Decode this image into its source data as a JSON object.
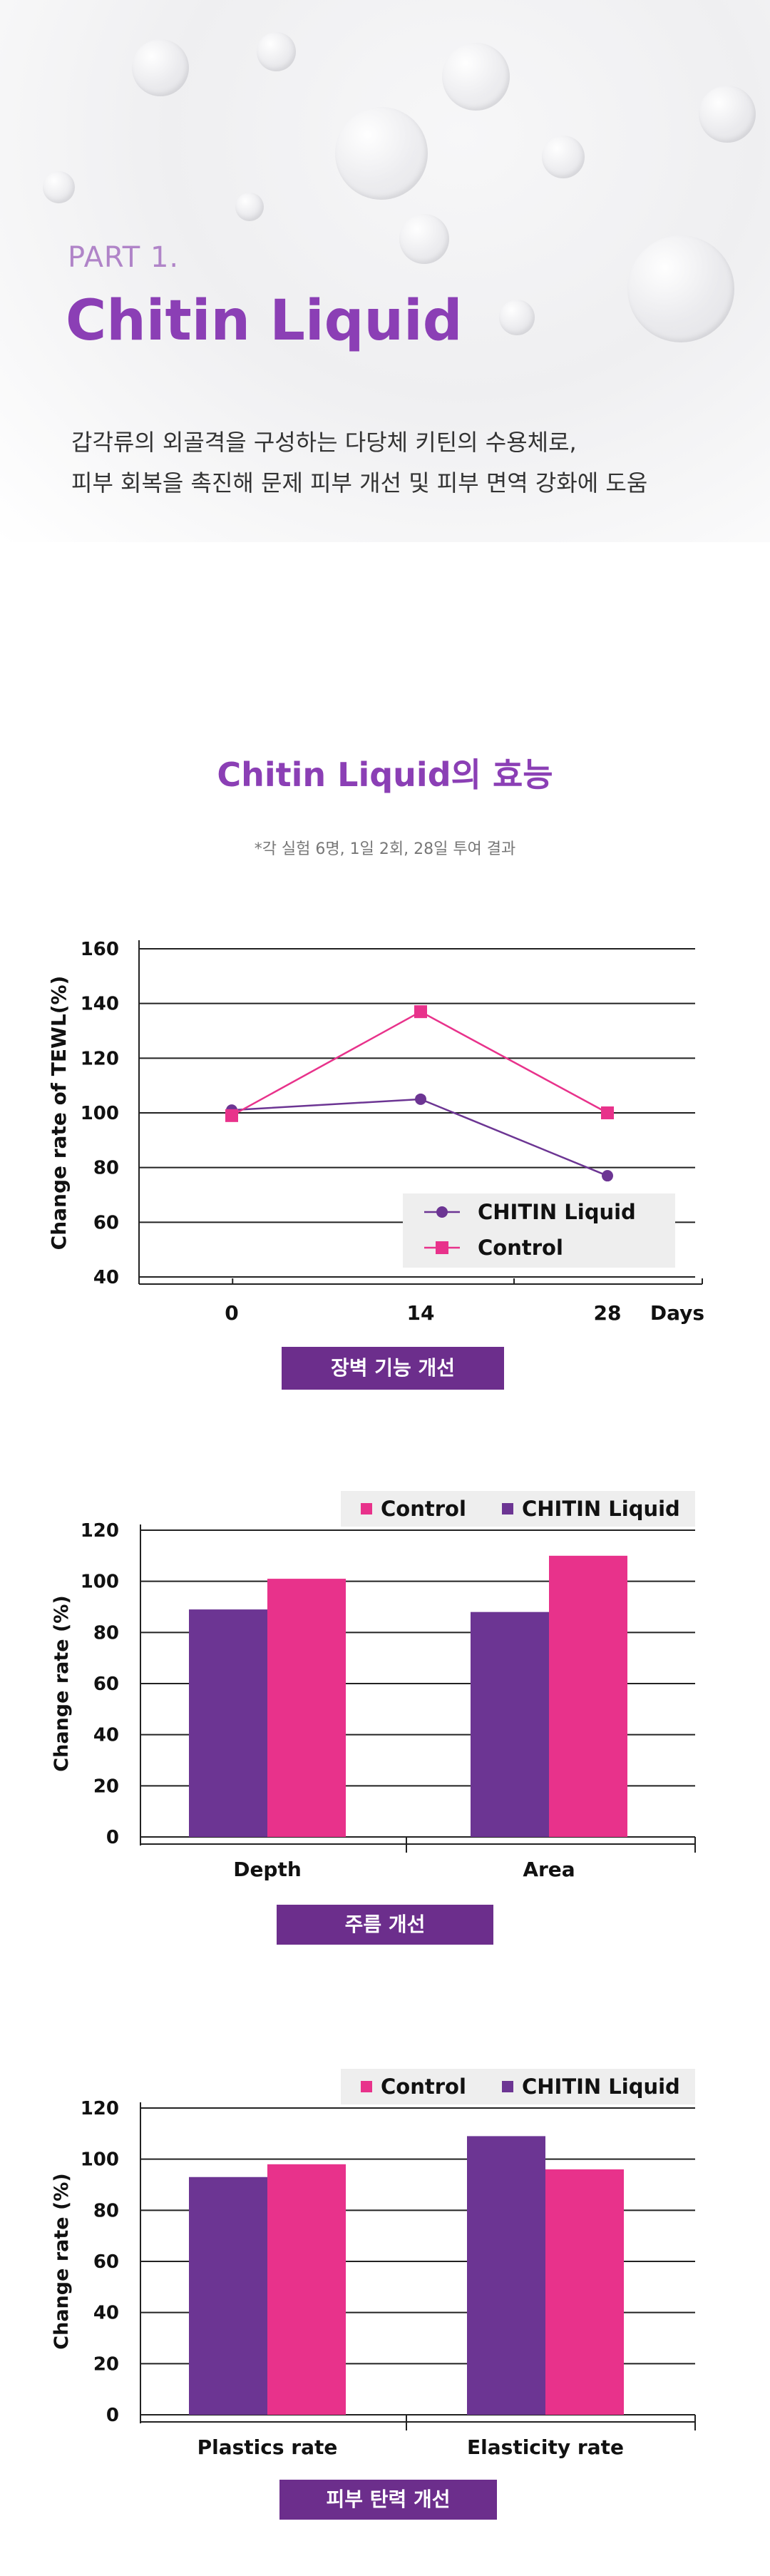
{
  "hero": {
    "part_label": "PART 1.",
    "title": "Chitin Liquid",
    "description_line1": "갑각류의 외골격을 구성하는 다당체 키틴의 수용체로,",
    "description_line2": "피부 회복을 촉진해 문제 피부 개선 및 피부 면역 강화에 도움"
  },
  "section": {
    "title": "Chitin Liquid의 효능",
    "note": "*각 실험 6명, 1일 2회, 28일 투여 결과"
  },
  "colors": {
    "purple": "#6c3593",
    "pink": "#e8328b",
    "accent": "#8b3fb5",
    "caption_bg": "#6c2e8c"
  },
  "chart_data": [
    {
      "type": "line",
      "ylabel": "Change rate of TEWL(%)",
      "xlabel": "Days",
      "x": [
        0,
        14,
        28
      ],
      "x_tick_labels": [
        "0",
        "14",
        "28"
      ],
      "ylim": [
        40,
        160
      ],
      "yticks": [
        40,
        60,
        80,
        100,
        120,
        140,
        160
      ],
      "grid": true,
      "legend_position": "bottom-right",
      "series": [
        {
          "name": "CHITIN Liquid",
          "values": [
            101,
            105,
            77
          ],
          "color": "#6c3593",
          "marker": "circle"
        },
        {
          "name": "Control",
          "values": [
            99,
            137,
            100
          ],
          "color": "#e8328b",
          "marker": "square"
        }
      ],
      "caption": "장벽 기능 개선"
    },
    {
      "type": "bar",
      "ylabel": "Change rate (%)",
      "categories": [
        "Depth",
        "Area"
      ],
      "ylim": [
        0,
        120
      ],
      "yticks": [
        0,
        20,
        40,
        60,
        80,
        100,
        120
      ],
      "grid": true,
      "legend_position": "top-right",
      "legend_order": [
        "Control",
        "CHITIN Liquid"
      ],
      "series": [
        {
          "name": "CHITIN Liquid",
          "values": [
            89,
            88
          ],
          "color": "#6c3593"
        },
        {
          "name": "Control",
          "values": [
            101,
            110
          ],
          "color": "#e8328b"
        }
      ],
      "caption": "주름 개선"
    },
    {
      "type": "bar",
      "ylabel": "Change rate (%)",
      "categories": [
        "Plastics rate",
        "Elasticity rate"
      ],
      "ylim": [
        0,
        120
      ],
      "yticks": [
        0,
        20,
        40,
        60,
        80,
        100,
        120
      ],
      "grid": true,
      "legend_position": "top-right",
      "legend_order": [
        "Control",
        "CHITIN Liquid"
      ],
      "series": [
        {
          "name": "CHITIN Liquid",
          "values": [
            93,
            109
          ],
          "color": "#6c3593"
        },
        {
          "name": "Control",
          "values": [
            98,
            96
          ],
          "color": "#e8328b"
        }
      ],
      "caption": "피부 탄력 개선"
    }
  ]
}
